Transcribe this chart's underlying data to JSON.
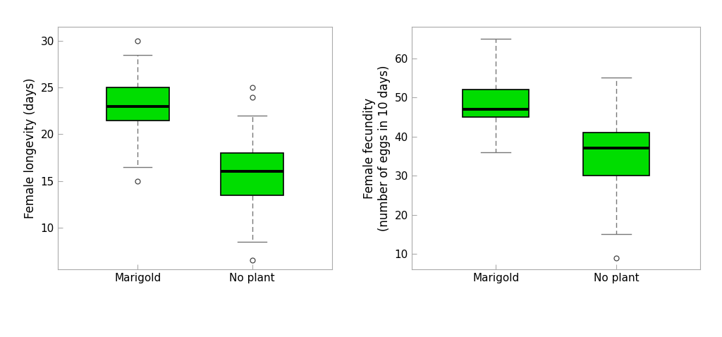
{
  "longevity": {
    "ylabel": "Female longevity (days)",
    "categories": [
      "Marigold",
      "No plant"
    ],
    "marigold": {
      "q1": 21.5,
      "median": 23.0,
      "q3": 25.0,
      "whisker_low": 16.5,
      "whisker_high": 28.5,
      "outliers": [
        15.0,
        30.0
      ]
    },
    "noplant": {
      "q1": 13.5,
      "median": 16.0,
      "q3": 18.0,
      "whisker_low": 8.5,
      "whisker_high": 22.0,
      "outliers": [
        6.5,
        24.0,
        25.0
      ]
    },
    "ylim": [
      5.5,
      31.5
    ],
    "yticks": [
      10,
      15,
      20,
      25,
      30
    ]
  },
  "fecundity": {
    "ylabel": "Female fecundity\n(number of eggs in 10 days)",
    "categories": [
      "Marigold",
      "No plant"
    ],
    "marigold": {
      "q1": 45.0,
      "median": 47.0,
      "q3": 52.0,
      "whisker_low": 36.0,
      "whisker_high": 65.0,
      "outliers": []
    },
    "noplant": {
      "q1": 30.0,
      "median": 37.0,
      "q3": 41.0,
      "whisker_low": 15.0,
      "whisker_high": 55.0,
      "outliers": [
        9.0
      ]
    },
    "ylim": [
      6,
      68
    ],
    "yticks": [
      10,
      20,
      30,
      40,
      50,
      60
    ]
  },
  "box_color": "#00DD00",
  "box_width": 0.55,
  "median_color": "black",
  "whisker_color": "#777777",
  "outlier_color": "#444444",
  "background_color": "white",
  "spine_color": "#aaaaaa",
  "fontsize": 12,
  "tick_fontsize": 11,
  "cap_ratio": 0.45
}
